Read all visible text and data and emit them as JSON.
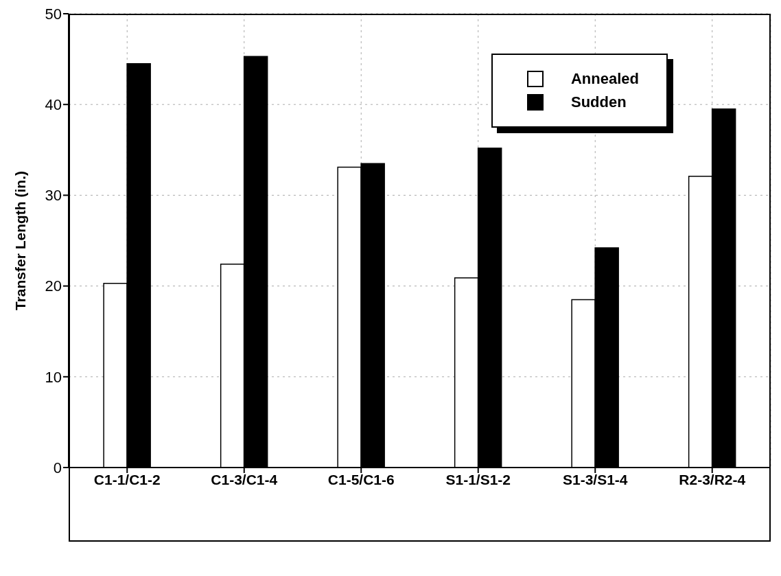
{
  "chart_data": {
    "type": "bar",
    "ylabel": "Transfer Length (in.)",
    "categories": [
      "C1-1/C1-2",
      "C1-3/C1-4",
      "C1-5/C1-6",
      "S1-1/S1-2",
      "S1-3/S1-4",
      "R2-3/R2-4"
    ],
    "series": [
      {
        "name": "Annealed",
        "color": "#ffffff",
        "values": [
          20.3,
          22.4,
          33.1,
          20.9,
          18.5,
          32.1
        ]
      },
      {
        "name": "Sudden",
        "color": "#000000",
        "values": [
          44.5,
          45.3,
          33.5,
          35.2,
          24.2,
          39.5
        ]
      }
    ],
    "ylim": [
      0,
      50
    ],
    "yticks": [
      0,
      10,
      20,
      30,
      40,
      50
    ],
    "grid": true,
    "legend": "top right"
  }
}
